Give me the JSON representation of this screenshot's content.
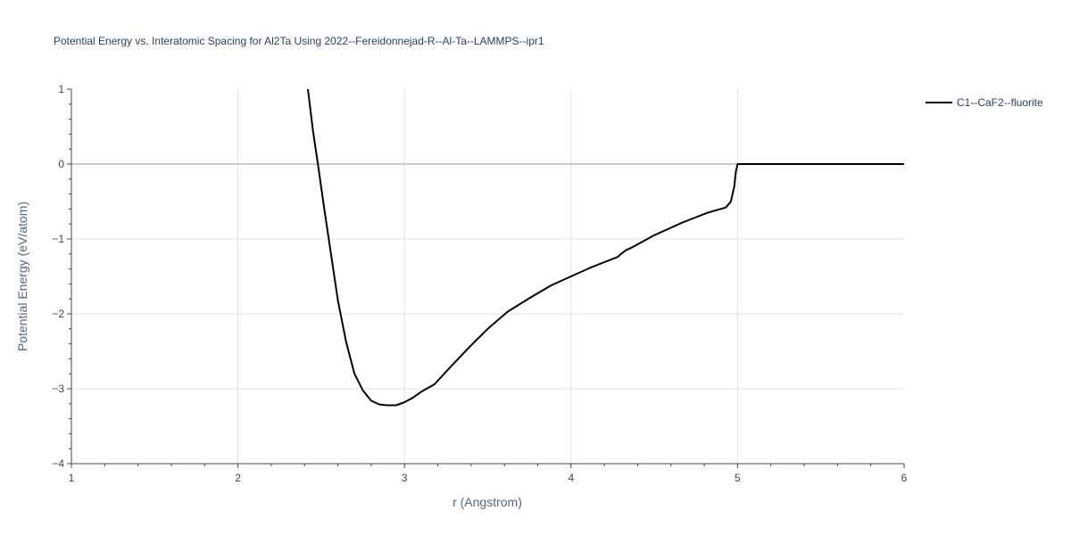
{
  "chart_data": {
    "type": "line",
    "title": "Potential Energy vs. Interatomic Spacing for Al2Ta Using 2022--Fereidonnejad-R--Al-Ta--LAMMPS--ipr1",
    "xlabel": "r (Angstrom)",
    "ylabel": "Potential Energy (eV/atom)",
    "xlim": [
      1,
      6
    ],
    "ylim": [
      -4,
      1
    ],
    "x_ticks": [
      "1",
      "2",
      "3",
      "4",
      "5",
      "6"
    ],
    "y_ticks": [
      "1",
      "0",
      "−1",
      "−2",
      "−3",
      "−4"
    ],
    "grid": true,
    "legend_position": "top-right",
    "series": [
      {
        "name": "C1--CaF2--fluorite",
        "color": "#000000",
        "x": [
          2.42,
          2.45,
          2.48,
          2.52,
          2.56,
          2.6,
          2.65,
          2.7,
          2.75,
          2.8,
          2.85,
          2.9,
          2.95,
          3.0,
          3.05,
          3.1,
          3.18,
          3.28,
          3.4,
          3.5,
          3.62,
          3.75,
          3.88,
          4.0,
          4.12,
          4.2,
          4.28,
          4.3,
          4.33,
          4.36,
          4.5,
          4.67,
          4.82,
          4.93,
          4.96,
          4.98,
          4.99,
          5.0,
          5.1,
          5.5,
          6.0
        ],
        "y": [
          1.0,
          0.45,
          0.0,
          -0.62,
          -1.22,
          -1.82,
          -2.38,
          -2.8,
          -3.02,
          -3.16,
          -3.21,
          -3.22,
          -3.22,
          -3.18,
          -3.12,
          -3.04,
          -2.94,
          -2.7,
          -2.42,
          -2.2,
          -1.97,
          -1.79,
          -1.62,
          -1.5,
          -1.38,
          -1.31,
          -1.24,
          -1.2,
          -1.15,
          -1.12,
          -0.95,
          -0.78,
          -0.65,
          -0.58,
          -0.5,
          -0.3,
          -0.1,
          0.0,
          0.0,
          0.0,
          0.0
        ]
      }
    ]
  }
}
